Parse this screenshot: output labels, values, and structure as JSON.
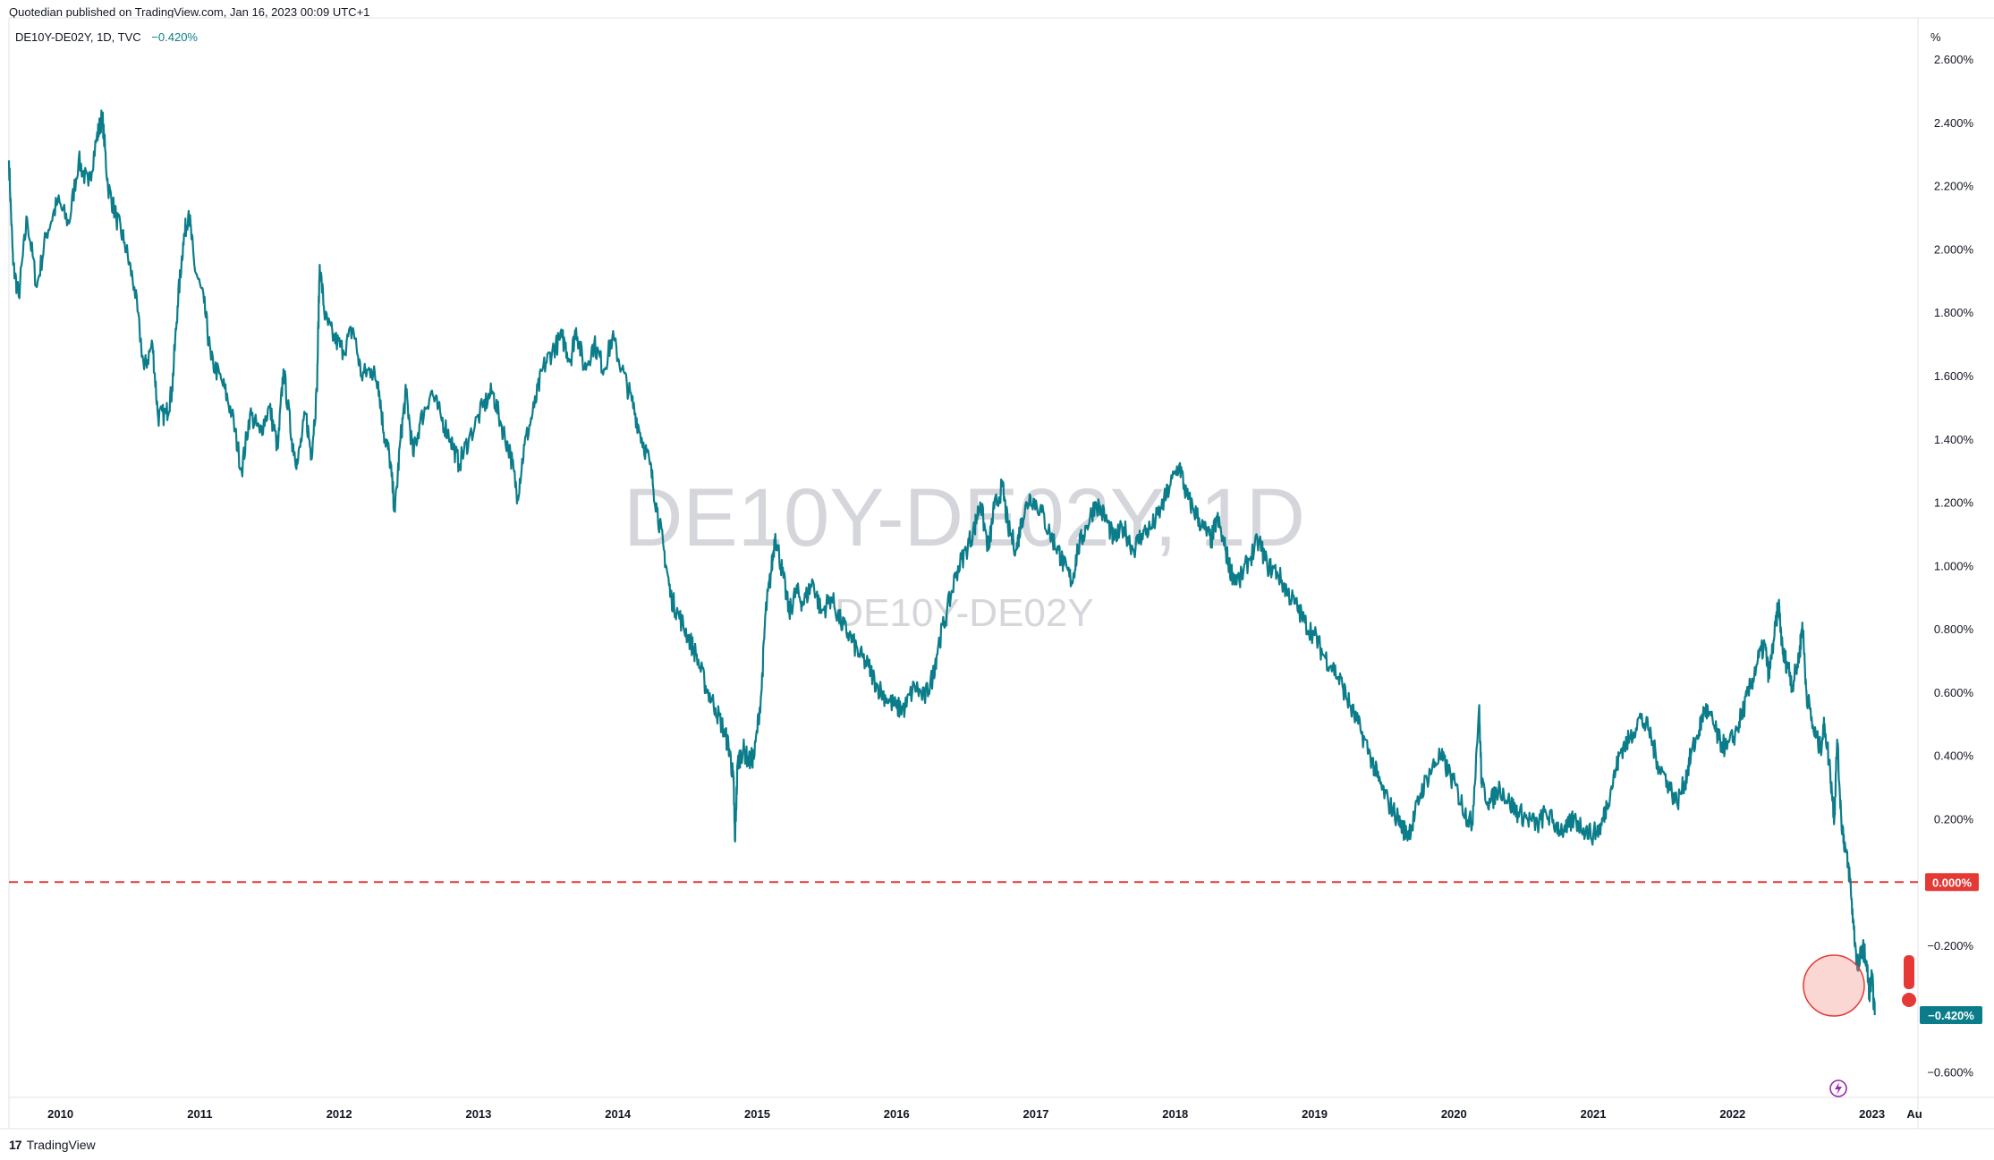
{
  "header": {
    "published": "Quotedian published on TradingView.com, Jan 16, 2023 00:09 UTC+1",
    "legend_symbol": "DE10Y-DE02Y, 1D, TVC",
    "legend_value": "−0.420%",
    "unit": "%"
  },
  "footer": {
    "logo_mark": "17",
    "brand": "TradingView"
  },
  "colors": {
    "line": "#0b7d8a",
    "zero_line": "#e53935",
    "badge_last": "#0b7d8a",
    "badge_zero": "#e53935",
    "highlight": "#f28b82"
  },
  "chart_data": {
    "type": "line",
    "title": "DE10Y-DE02Y, 1D",
    "watermark_large": "DE10Y-DE02Y, 1D",
    "watermark_small": "DE10Y-DE02Y",
    "xlabel": "",
    "ylabel": "%",
    "xlim": [
      2009.65,
      2023.35
    ],
    "ylim": [
      -0.68,
      2.73
    ],
    "x_ticks": [
      "2010",
      "2011",
      "2012",
      "2013",
      "2014",
      "2015",
      "2016",
      "2017",
      "2018",
      "2019",
      "2020",
      "2021",
      "2022",
      "2023",
      "Au"
    ],
    "y_ticks": [
      "2.600%",
      "2.400%",
      "2.200%",
      "2.000%",
      "1.800%",
      "1.600%",
      "1.400%",
      "1.200%",
      "1.000%",
      "0.800%",
      "0.600%",
      "0.400%",
      "0.200%",
      "−0.200%",
      "−0.600%"
    ],
    "zero_line_label": "0.000%",
    "last_value_label": "−0.420%",
    "series": [
      {
        "points": [
          [
            2009.65,
            2.28
          ],
          [
            2009.68,
            1.95
          ],
          [
            2009.72,
            1.85
          ],
          [
            2009.78,
            2.1
          ],
          [
            2009.85,
            1.88
          ],
          [
            2009.92,
            2.05
          ],
          [
            2010.0,
            2.15
          ],
          [
            2010.08,
            2.08
          ],
          [
            2010.15,
            2.28
          ],
          [
            2010.22,
            2.2
          ],
          [
            2010.28,
            2.35
          ],
          [
            2010.32,
            2.42
          ],
          [
            2010.36,
            2.2
          ],
          [
            2010.42,
            2.1
          ],
          [
            2010.48,
            2.02
          ],
          [
            2010.55,
            1.88
          ],
          [
            2010.62,
            1.62
          ],
          [
            2010.68,
            1.7
          ],
          [
            2010.72,
            1.47
          ],
          [
            2010.78,
            1.48
          ],
          [
            2010.82,
            1.55
          ],
          [
            2010.86,
            1.82
          ],
          [
            2010.9,
            2.02
          ],
          [
            2010.94,
            2.12
          ],
          [
            2010.98,
            1.95
          ],
          [
            2011.05,
            1.83
          ],
          [
            2011.1,
            1.65
          ],
          [
            2011.18,
            1.58
          ],
          [
            2011.25,
            1.48
          ],
          [
            2011.32,
            1.3
          ],
          [
            2011.38,
            1.48
          ],
          [
            2011.45,
            1.42
          ],
          [
            2011.52,
            1.5
          ],
          [
            2011.58,
            1.37
          ],
          [
            2011.62,
            1.62
          ],
          [
            2011.68,
            1.4
          ],
          [
            2011.72,
            1.32
          ],
          [
            2011.78,
            1.48
          ],
          [
            2011.82,
            1.35
          ],
          [
            2011.86,
            1.55
          ],
          [
            2011.88,
            1.95
          ],
          [
            2011.92,
            1.78
          ],
          [
            2011.98,
            1.72
          ],
          [
            2012.05,
            1.68
          ],
          [
            2012.12,
            1.75
          ],
          [
            2012.18,
            1.6
          ],
          [
            2012.25,
            1.62
          ],
          [
            2012.3,
            1.58
          ],
          [
            2012.34,
            1.42
          ],
          [
            2012.38,
            1.35
          ],
          [
            2012.42,
            1.17
          ],
          [
            2012.46,
            1.4
          ],
          [
            2012.5,
            1.55
          ],
          [
            2012.55,
            1.35
          ],
          [
            2012.6,
            1.45
          ],
          [
            2012.68,
            1.55
          ],
          [
            2012.75,
            1.47
          ],
          [
            2012.82,
            1.4
          ],
          [
            2012.88,
            1.32
          ],
          [
            2012.95,
            1.4
          ],
          [
            2013.05,
            1.5
          ],
          [
            2013.12,
            1.55
          ],
          [
            2013.18,
            1.45
          ],
          [
            2013.25,
            1.35
          ],
          [
            2013.3,
            1.22
          ],
          [
            2013.35,
            1.38
          ],
          [
            2013.42,
            1.5
          ],
          [
            2013.48,
            1.62
          ],
          [
            2013.55,
            1.68
          ],
          [
            2013.62,
            1.72
          ],
          [
            2013.68,
            1.65
          ],
          [
            2013.72,
            1.75
          ],
          [
            2013.78,
            1.62
          ],
          [
            2013.85,
            1.7
          ],
          [
            2013.92,
            1.62
          ],
          [
            2013.98,
            1.72
          ],
          [
            2014.05,
            1.62
          ],
          [
            2014.12,
            1.52
          ],
          [
            2014.18,
            1.42
          ],
          [
            2014.25,
            1.32
          ],
          [
            2014.3,
            1.18
          ],
          [
            2014.35,
            1.05
          ],
          [
            2014.4,
            0.9
          ],
          [
            2014.45,
            0.85
          ],
          [
            2014.52,
            0.78
          ],
          [
            2014.58,
            0.72
          ],
          [
            2014.65,
            0.62
          ],
          [
            2014.72,
            0.55
          ],
          [
            2014.78,
            0.48
          ],
          [
            2014.82,
            0.42
          ],
          [
            2014.85,
            0.32
          ],
          [
            2014.86,
            0.13
          ],
          [
            2014.88,
            0.38
          ],
          [
            2014.92,
            0.42
          ],
          [
            2014.96,
            0.38
          ],
          [
            2015.0,
            0.4
          ],
          [
            2015.05,
            0.6
          ],
          [
            2015.08,
            0.85
          ],
          [
            2015.12,
            0.98
          ],
          [
            2015.15,
            1.1
          ],
          [
            2015.2,
            0.98
          ],
          [
            2015.25,
            0.85
          ],
          [
            2015.3,
            0.92
          ],
          [
            2015.35,
            0.88
          ],
          [
            2015.42,
            0.95
          ],
          [
            2015.48,
            0.85
          ],
          [
            2015.55,
            0.9
          ],
          [
            2015.62,
            0.82
          ],
          [
            2015.68,
            0.78
          ],
          [
            2015.75,
            0.72
          ],
          [
            2015.82,
            0.68
          ],
          [
            2015.88,
            0.62
          ],
          [
            2015.95,
            0.58
          ],
          [
            2016.02,
            0.55
          ],
          [
            2016.08,
            0.55
          ],
          [
            2016.15,
            0.62
          ],
          [
            2016.22,
            0.58
          ],
          [
            2016.28,
            0.65
          ],
          [
            2016.32,
            0.75
          ],
          [
            2016.38,
            0.85
          ],
          [
            2016.45,
            0.98
          ],
          [
            2016.52,
            1.05
          ],
          [
            2016.58,
            1.12
          ],
          [
            2016.62,
            1.2
          ],
          [
            2016.68,
            1.05
          ],
          [
            2016.72,
            1.18
          ],
          [
            2016.78,
            1.25
          ],
          [
            2016.82,
            1.12
          ],
          [
            2016.88,
            1.05
          ],
          [
            2016.92,
            1.15
          ],
          [
            2016.98,
            1.22
          ],
          [
            2017.05,
            1.18
          ],
          [
            2017.12,
            1.1
          ],
          [
            2017.18,
            1.05
          ],
          [
            2017.22,
            1.0
          ],
          [
            2017.28,
            0.95
          ],
          [
            2017.32,
            1.05
          ],
          [
            2017.38,
            1.12
          ],
          [
            2017.45,
            1.2
          ],
          [
            2017.52,
            1.15
          ],
          [
            2017.58,
            1.08
          ],
          [
            2017.65,
            1.12
          ],
          [
            2017.72,
            1.05
          ],
          [
            2017.78,
            1.1
          ],
          [
            2017.85,
            1.12
          ],
          [
            2017.92,
            1.18
          ],
          [
            2017.98,
            1.25
          ],
          [
            2018.05,
            1.32
          ],
          [
            2018.1,
            1.22
          ],
          [
            2018.15,
            1.18
          ],
          [
            2018.22,
            1.12
          ],
          [
            2018.28,
            1.08
          ],
          [
            2018.32,
            1.15
          ],
          [
            2018.38,
            1.05
          ],
          [
            2018.42,
            0.98
          ],
          [
            2018.48,
            0.95
          ],
          [
            2018.55,
            1.02
          ],
          [
            2018.62,
            1.08
          ],
          [
            2018.68,
            1.0
          ],
          [
            2018.75,
            0.98
          ],
          [
            2018.82,
            0.92
          ],
          [
            2018.88,
            0.88
          ],
          [
            2018.95,
            0.82
          ],
          [
            2019.02,
            0.78
          ],
          [
            2019.08,
            0.72
          ],
          [
            2019.15,
            0.68
          ],
          [
            2019.22,
            0.62
          ],
          [
            2019.28,
            0.55
          ],
          [
            2019.35,
            0.48
          ],
          [
            2019.42,
            0.4
          ],
          [
            2019.48,
            0.32
          ],
          [
            2019.55,
            0.25
          ],
          [
            2019.62,
            0.2
          ],
          [
            2019.68,
            0.15
          ],
          [
            2019.72,
            0.18
          ],
          [
            2019.78,
            0.28
          ],
          [
            2019.85,
            0.35
          ],
          [
            2019.92,
            0.4
          ],
          [
            2019.98,
            0.35
          ],
          [
            2020.05,
            0.28
          ],
          [
            2020.1,
            0.22
          ],
          [
            2020.15,
            0.18
          ],
          [
            2020.2,
            0.55
          ],
          [
            2020.22,
            0.3
          ],
          [
            2020.28,
            0.25
          ],
          [
            2020.35,
            0.3
          ],
          [
            2020.42,
            0.25
          ],
          [
            2020.48,
            0.22
          ],
          [
            2020.55,
            0.2
          ],
          [
            2020.62,
            0.18
          ],
          [
            2020.68,
            0.22
          ],
          [
            2020.75,
            0.18
          ],
          [
            2020.82,
            0.16
          ],
          [
            2020.88,
            0.2
          ],
          [
            2020.95,
            0.17
          ],
          [
            2021.02,
            0.15
          ],
          [
            2021.08,
            0.18
          ],
          [
            2021.12,
            0.25
          ],
          [
            2021.18,
            0.35
          ],
          [
            2021.22,
            0.42
          ],
          [
            2021.28,
            0.45
          ],
          [
            2021.35,
            0.52
          ],
          [
            2021.42,
            0.48
          ],
          [
            2021.48,
            0.38
          ],
          [
            2021.55,
            0.32
          ],
          [
            2021.62,
            0.25
          ],
          [
            2021.68,
            0.32
          ],
          [
            2021.72,
            0.4
          ],
          [
            2021.78,
            0.48
          ],
          [
            2021.82,
            0.55
          ],
          [
            2021.88,
            0.5
          ],
          [
            2021.92,
            0.45
          ],
          [
            2021.98,
            0.42
          ],
          [
            2022.05,
            0.48
          ],
          [
            2022.1,
            0.55
          ],
          [
            2022.15,
            0.62
          ],
          [
            2022.2,
            0.7
          ],
          [
            2022.25,
            0.75
          ],
          [
            2022.28,
            0.65
          ],
          [
            2022.32,
            0.78
          ],
          [
            2022.35,
            0.88
          ],
          [
            2022.38,
            0.72
          ],
          [
            2022.42,
            0.68
          ],
          [
            2022.45,
            0.62
          ],
          [
            2022.5,
            0.72
          ],
          [
            2022.52,
            0.82
          ],
          [
            2022.55,
            0.6
          ],
          [
            2022.6,
            0.48
          ],
          [
            2022.65,
            0.42
          ],
          [
            2022.68,
            0.5
          ],
          [
            2022.72,
            0.35
          ],
          [
            2022.75,
            0.2
          ],
          [
            2022.77,
            0.45
          ],
          [
            2022.8,
            0.2
          ],
          [
            2022.83,
            0.1
          ],
          [
            2022.86,
            0.02
          ],
          [
            2022.89,
            -0.15
          ],
          [
            2022.92,
            -0.28
          ],
          [
            2022.95,
            -0.2
          ],
          [
            2022.98,
            -0.25
          ],
          [
            2023.0,
            -0.35
          ],
          [
            2023.02,
            -0.3
          ],
          [
            2023.04,
            -0.42
          ]
        ]
      }
    ]
  }
}
